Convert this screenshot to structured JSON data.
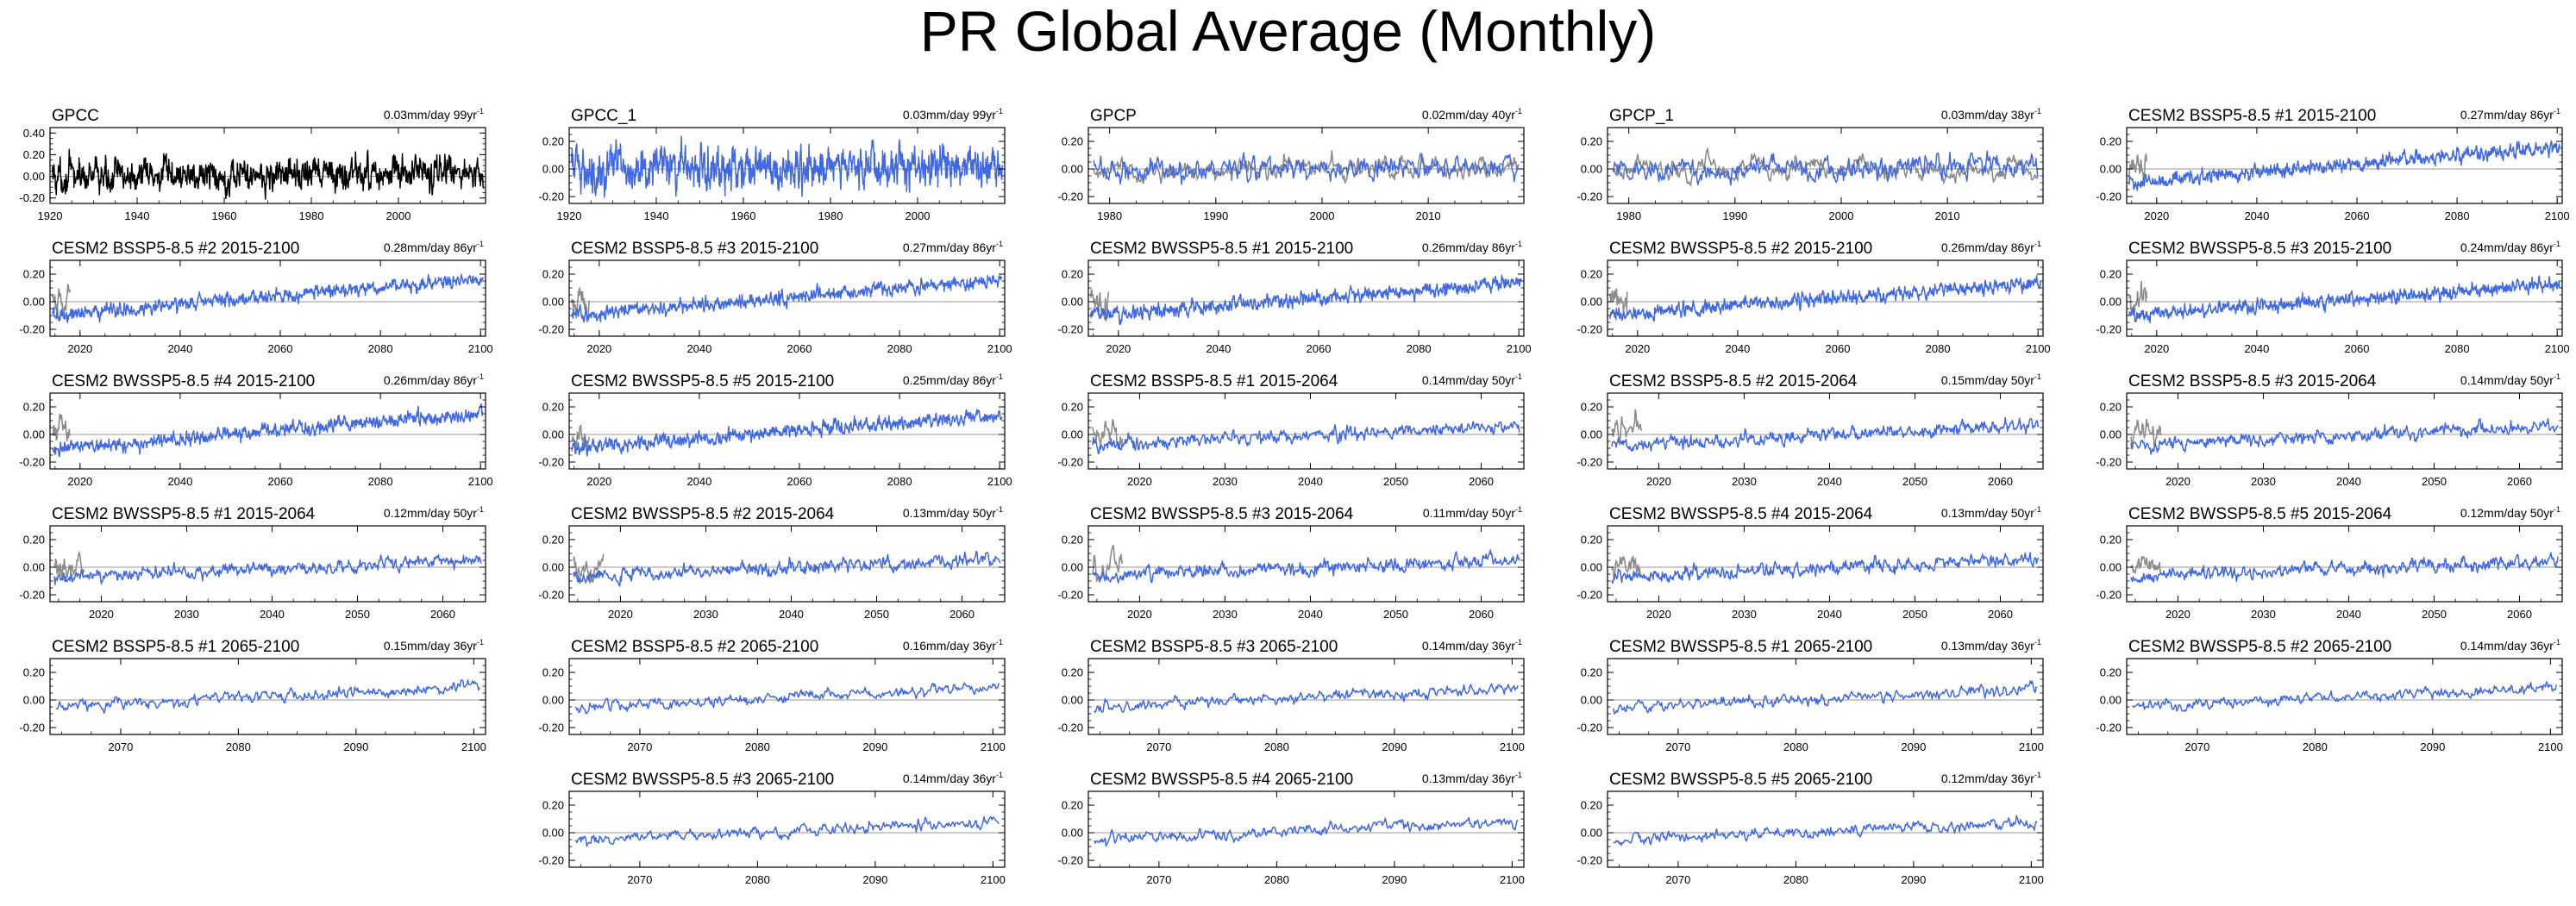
{
  "title": "PR Global Average (Monthly)",
  "chart_data": {
    "type": "line",
    "variable": "PR",
    "units": "mm/day",
    "trend_suffix": "yr",
    "panels": [
      {
        "name": "GPCC",
        "trend_value": "0.03",
        "trend_period": "99",
        "x_range": [
          1920,
          2020
        ],
        "ylim": [
          -0.25,
          0.45
        ],
        "yticks": [
          "0.40",
          "0.20",
          "0.00",
          "-0.20"
        ],
        "xticks": [
          1920,
          1940,
          1960,
          1980,
          2000
        ],
        "series_color": "#000000",
        "obs_overlay": false,
        "start_value": 0.0,
        "end_value": 0.03,
        "noise": 0.09
      },
      {
        "name": "GPCC_1",
        "trend_value": "0.03",
        "trend_period": "99",
        "x_range": [
          1920,
          2020
        ],
        "ylim": [
          -0.25,
          0.3
        ],
        "yticks": [
          "0.20",
          "0.00",
          "-0.20"
        ],
        "xticks": [
          1920,
          1940,
          1960,
          1980,
          2000
        ],
        "series_color": "#4169e1",
        "obs_overlay": false,
        "start_value": 0.0,
        "end_value": 0.03,
        "noise": 0.09
      },
      {
        "name": "GPCP",
        "trend_value": "0.02",
        "trend_period": "40",
        "x_range": [
          1978,
          2019
        ],
        "ylim": [
          -0.25,
          0.3
        ],
        "yticks": [
          "0.20",
          "0.00",
          "-0.20"
        ],
        "xticks": [
          1980,
          1990,
          2000,
          2010
        ],
        "series_color": "#4169e1",
        "obs_overlay": true,
        "start_value": -0.01,
        "end_value": 0.01,
        "noise": 0.05
      },
      {
        "name": "GPCP_1",
        "trend_value": "0.03",
        "trend_period": "38",
        "x_range": [
          1978,
          2019
        ],
        "ylim": [
          -0.25,
          0.3
        ],
        "yticks": [
          "0.20",
          "0.00",
          "-0.20"
        ],
        "xticks": [
          1980,
          1990,
          2000,
          2010
        ],
        "series_color": "#4169e1",
        "obs_overlay": true,
        "start_value": -0.01,
        "end_value": 0.02,
        "noise": 0.05
      },
      {
        "name": "CESM2 BSSP5-8.5 #1 2015-2100",
        "trend_value": "0.27",
        "trend_period": "86",
        "x_range": [
          2014,
          2101
        ],
        "ylim": [
          -0.25,
          0.3
        ],
        "yticks": [
          "0.20",
          "0.00",
          "-0.20"
        ],
        "xticks": [
          2020,
          2040,
          2060,
          2080,
          2100
        ],
        "series_color": "#4169e1",
        "obs_overlay": true,
        "start_value": -0.1,
        "end_value": 0.16,
        "noise": 0.03
      },
      {
        "name": "CESM2 BSSP5-8.5 #2 2015-2100",
        "trend_value": "0.28",
        "trend_period": "86",
        "x_range": [
          2014,
          2101
        ],
        "ylim": [
          -0.25,
          0.3
        ],
        "yticks": [
          "0.20",
          "0.00",
          "-0.20"
        ],
        "xticks": [
          2020,
          2040,
          2060,
          2080,
          2100
        ],
        "series_color": "#4169e1",
        "obs_overlay": true,
        "start_value": -0.1,
        "end_value": 0.17,
        "noise": 0.03
      },
      {
        "name": "CESM2 BSSP5-8.5 #3 2015-2100",
        "trend_value": "0.27",
        "trend_period": "86",
        "x_range": [
          2014,
          2101
        ],
        "ylim": [
          -0.25,
          0.3
        ],
        "yticks": [
          "0.20",
          "0.00",
          "-0.20"
        ],
        "xticks": [
          2020,
          2040,
          2060,
          2080,
          2100
        ],
        "series_color": "#4169e1",
        "obs_overlay": true,
        "start_value": -0.1,
        "end_value": 0.16,
        "noise": 0.03
      },
      {
        "name": "CESM2 BWSSP5-8.5 #1 2015-2100",
        "trend_value": "0.26",
        "trend_period": "86",
        "x_range": [
          2014,
          2101
        ],
        "ylim": [
          -0.25,
          0.3
        ],
        "yticks": [
          "0.20",
          "0.00",
          "-0.20"
        ],
        "xticks": [
          2020,
          2040,
          2060,
          2080,
          2100
        ],
        "series_color": "#4169e1",
        "obs_overlay": true,
        "start_value": -0.1,
        "end_value": 0.14,
        "noise": 0.03
      },
      {
        "name": "CESM2 BWSSP5-8.5 #2 2015-2100",
        "trend_value": "0.26",
        "trend_period": "86",
        "x_range": [
          2014,
          2101
        ],
        "ylim": [
          -0.25,
          0.3
        ],
        "yticks": [
          "0.20",
          "0.00",
          "-0.20"
        ],
        "xticks": [
          2020,
          2040,
          2060,
          2080,
          2100
        ],
        "series_color": "#4169e1",
        "obs_overlay": true,
        "start_value": -0.1,
        "end_value": 0.14,
        "noise": 0.03
      },
      {
        "name": "CESM2 BWSSP5-8.5 #3 2015-2100",
        "trend_value": "0.24",
        "trend_period": "86",
        "x_range": [
          2014,
          2101
        ],
        "ylim": [
          -0.25,
          0.3
        ],
        "yticks": [
          "0.20",
          "0.00",
          "-0.20"
        ],
        "xticks": [
          2020,
          2040,
          2060,
          2080,
          2100
        ],
        "series_color": "#4169e1",
        "obs_overlay": true,
        "start_value": -0.1,
        "end_value": 0.13,
        "noise": 0.03
      },
      {
        "name": "CESM2 BWSSP5-8.5 #4 2015-2100",
        "trend_value": "0.26",
        "trend_period": "86",
        "x_range": [
          2014,
          2101
        ],
        "ylim": [
          -0.25,
          0.3
        ],
        "yticks": [
          "0.20",
          "0.00",
          "-0.20"
        ],
        "xticks": [
          2020,
          2040,
          2060,
          2080,
          2100
        ],
        "series_color": "#4169e1",
        "obs_overlay": true,
        "start_value": -0.1,
        "end_value": 0.15,
        "noise": 0.03
      },
      {
        "name": "CESM2 BWSSP5-8.5 #5 2015-2100",
        "trend_value": "0.25",
        "trend_period": "86",
        "x_range": [
          2014,
          2101
        ],
        "ylim": [
          -0.25,
          0.3
        ],
        "yticks": [
          "0.20",
          "0.00",
          "-0.20"
        ],
        "xticks": [
          2020,
          2040,
          2060,
          2080,
          2100
        ],
        "series_color": "#4169e1",
        "obs_overlay": true,
        "start_value": -0.1,
        "end_value": 0.14,
        "noise": 0.03
      },
      {
        "name": "CESM2 BSSP5-8.5 #1 2015-2064",
        "trend_value": "0.14",
        "trend_period": "50",
        "x_range": [
          2014,
          2065
        ],
        "ylim": [
          -0.25,
          0.3
        ],
        "yticks": [
          "0.20",
          "0.00",
          "-0.20"
        ],
        "xticks": [
          2020,
          2030,
          2040,
          2050,
          2060
        ],
        "series_color": "#4169e1",
        "obs_overlay": true,
        "start_value": -0.08,
        "end_value": 0.06,
        "noise": 0.03
      },
      {
        "name": "CESM2 BSSP5-8.5 #2 2015-2064",
        "trend_value": "0.15",
        "trend_period": "50",
        "x_range": [
          2014,
          2065
        ],
        "ylim": [
          -0.25,
          0.3
        ],
        "yticks": [
          "0.20",
          "0.00",
          "-0.20"
        ],
        "xticks": [
          2020,
          2030,
          2040,
          2050,
          2060
        ],
        "series_color": "#4169e1",
        "obs_overlay": true,
        "start_value": -0.08,
        "end_value": 0.07,
        "noise": 0.03
      },
      {
        "name": "CESM2 BSSP5-8.5 #3 2015-2064",
        "trend_value": "0.14",
        "trend_period": "50",
        "x_range": [
          2014,
          2065
        ],
        "ylim": [
          -0.25,
          0.3
        ],
        "yticks": [
          "0.20",
          "0.00",
          "-0.20"
        ],
        "xticks": [
          2020,
          2030,
          2040,
          2050,
          2060
        ],
        "series_color": "#4169e1",
        "obs_overlay": true,
        "start_value": -0.08,
        "end_value": 0.06,
        "noise": 0.03
      },
      {
        "name": "CESM2 BWSSP5-8.5 #1 2015-2064",
        "trend_value": "0.12",
        "trend_period": "50",
        "x_range": [
          2014,
          2065
        ],
        "ylim": [
          -0.25,
          0.3
        ],
        "yticks": [
          "0.20",
          "0.00",
          "-0.20"
        ],
        "xticks": [
          2020,
          2030,
          2040,
          2050,
          2060
        ],
        "series_color": "#4169e1",
        "obs_overlay": true,
        "start_value": -0.07,
        "end_value": 0.05,
        "noise": 0.03
      },
      {
        "name": "CESM2 BWSSP5-8.5 #2 2015-2064",
        "trend_value": "0.13",
        "trend_period": "50",
        "x_range": [
          2014,
          2065
        ],
        "ylim": [
          -0.25,
          0.3
        ],
        "yticks": [
          "0.20",
          "0.00",
          "-0.20"
        ],
        "xticks": [
          2020,
          2030,
          2040,
          2050,
          2060
        ],
        "series_color": "#4169e1",
        "obs_overlay": true,
        "start_value": -0.07,
        "end_value": 0.06,
        "noise": 0.03
      },
      {
        "name": "CESM2 BWSSP5-8.5 #3 2015-2064",
        "trend_value": "0.11",
        "trend_period": "50",
        "x_range": [
          2014,
          2065
        ],
        "ylim": [
          -0.25,
          0.3
        ],
        "yticks": [
          "0.20",
          "0.00",
          "-0.20"
        ],
        "xticks": [
          2020,
          2030,
          2040,
          2050,
          2060
        ],
        "series_color": "#4169e1",
        "obs_overlay": true,
        "start_value": -0.06,
        "end_value": 0.05,
        "noise": 0.03
      },
      {
        "name": "CESM2 BWSSP5-8.5 #4 2015-2064",
        "trend_value": "0.13",
        "trend_period": "50",
        "x_range": [
          2014,
          2065
        ],
        "ylim": [
          -0.25,
          0.3
        ],
        "yticks": [
          "0.20",
          "0.00",
          "-0.20"
        ],
        "xticks": [
          2020,
          2030,
          2040,
          2050,
          2060
        ],
        "series_color": "#4169e1",
        "obs_overlay": true,
        "start_value": -0.07,
        "end_value": 0.06,
        "noise": 0.03
      },
      {
        "name": "CESM2 BWSSP5-8.5 #5 2015-2064",
        "trend_value": "0.12",
        "trend_period": "50",
        "x_range": [
          2014,
          2065
        ],
        "ylim": [
          -0.25,
          0.3
        ],
        "yticks": [
          "0.20",
          "0.00",
          "-0.20"
        ],
        "xticks": [
          2020,
          2030,
          2040,
          2050,
          2060
        ],
        "series_color": "#4169e1",
        "obs_overlay": true,
        "start_value": -0.07,
        "end_value": 0.05,
        "noise": 0.03
      },
      {
        "name": "CESM2 BSSP5-8.5 #1 2065-2100",
        "trend_value": "0.15",
        "trend_period": "36",
        "x_range": [
          2064,
          2101
        ],
        "ylim": [
          -0.25,
          0.3
        ],
        "yticks": [
          "0.20",
          "0.00",
          "-0.20"
        ],
        "xticks": [
          2070,
          2080,
          2090,
          2100
        ],
        "series_color": "#4169e1",
        "obs_overlay": false,
        "start_value": -0.05,
        "end_value": 0.1,
        "noise": 0.025
      },
      {
        "name": "CESM2 BSSP5-8.5 #2 2065-2100",
        "trend_value": "0.16",
        "trend_period": "36",
        "x_range": [
          2064,
          2101
        ],
        "ylim": [
          -0.25,
          0.3
        ],
        "yticks": [
          "0.20",
          "0.00",
          "-0.20"
        ],
        "xticks": [
          2070,
          2080,
          2090,
          2100
        ],
        "series_color": "#4169e1",
        "obs_overlay": false,
        "start_value": -0.06,
        "end_value": 0.1,
        "noise": 0.025
      },
      {
        "name": "CESM2 BSSP5-8.5 #3 2065-2100",
        "trend_value": "0.14",
        "trend_period": "36",
        "x_range": [
          2064,
          2101
        ],
        "ylim": [
          -0.25,
          0.3
        ],
        "yticks": [
          "0.20",
          "0.00",
          "-0.20"
        ],
        "xticks": [
          2070,
          2080,
          2090,
          2100
        ],
        "series_color": "#4169e1",
        "obs_overlay": false,
        "start_value": -0.05,
        "end_value": 0.09,
        "noise": 0.025
      },
      {
        "name": "CESM2 BWSSP5-8.5 #1 2065-2100",
        "trend_value": "0.13",
        "trend_period": "36",
        "x_range": [
          2064,
          2101
        ],
        "ylim": [
          -0.25,
          0.3
        ],
        "yticks": [
          "0.20",
          "0.00",
          "-0.20"
        ],
        "xticks": [
          2070,
          2080,
          2090,
          2100
        ],
        "series_color": "#4169e1",
        "obs_overlay": false,
        "start_value": -0.05,
        "end_value": 0.08,
        "noise": 0.025
      },
      {
        "name": "CESM2 BWSSP5-8.5 #2 2065-2100",
        "trend_value": "0.14",
        "trend_period": "36",
        "x_range": [
          2064,
          2101
        ],
        "ylim": [
          -0.25,
          0.3
        ],
        "yticks": [
          "0.20",
          "0.00",
          "-0.20"
        ],
        "xticks": [
          2070,
          2080,
          2090,
          2100
        ],
        "series_color": "#4169e1",
        "obs_overlay": false,
        "start_value": -0.05,
        "end_value": 0.09,
        "noise": 0.025
      },
      {
        "name": "CESM2 BWSSP5-8.5 #3 2065-2100",
        "trend_value": "0.14",
        "trend_period": "36",
        "x_range": [
          2064,
          2101
        ],
        "ylim": [
          -0.25,
          0.3
        ],
        "yticks": [
          "0.20",
          "0.00",
          "-0.20"
        ],
        "xticks": [
          2070,
          2080,
          2090,
          2100
        ],
        "series_color": "#4169e1",
        "obs_overlay": false,
        "start_value": -0.06,
        "end_value": 0.08,
        "noise": 0.025
      },
      {
        "name": "CESM2 BWSSP5-8.5 #4 2065-2100",
        "trend_value": "0.13",
        "trend_period": "36",
        "x_range": [
          2064,
          2101
        ],
        "ylim": [
          -0.25,
          0.3
        ],
        "yticks": [
          "0.20",
          "0.00",
          "-0.20"
        ],
        "xticks": [
          2070,
          2080,
          2090,
          2100
        ],
        "series_color": "#4169e1",
        "obs_overlay": false,
        "start_value": -0.05,
        "end_value": 0.08,
        "noise": 0.025
      },
      {
        "name": "CESM2 BWSSP5-8.5 #5 2065-2100",
        "trend_value": "0.12",
        "trend_period": "36",
        "x_range": [
          2064,
          2101
        ],
        "ylim": [
          -0.25,
          0.3
        ],
        "yticks": [
          "0.20",
          "0.00",
          "-0.20"
        ],
        "xticks": [
          2070,
          2080,
          2090,
          2100
        ],
        "series_color": "#4169e1",
        "obs_overlay": false,
        "start_value": -0.05,
        "end_value": 0.07,
        "noise": 0.025
      }
    ]
  }
}
